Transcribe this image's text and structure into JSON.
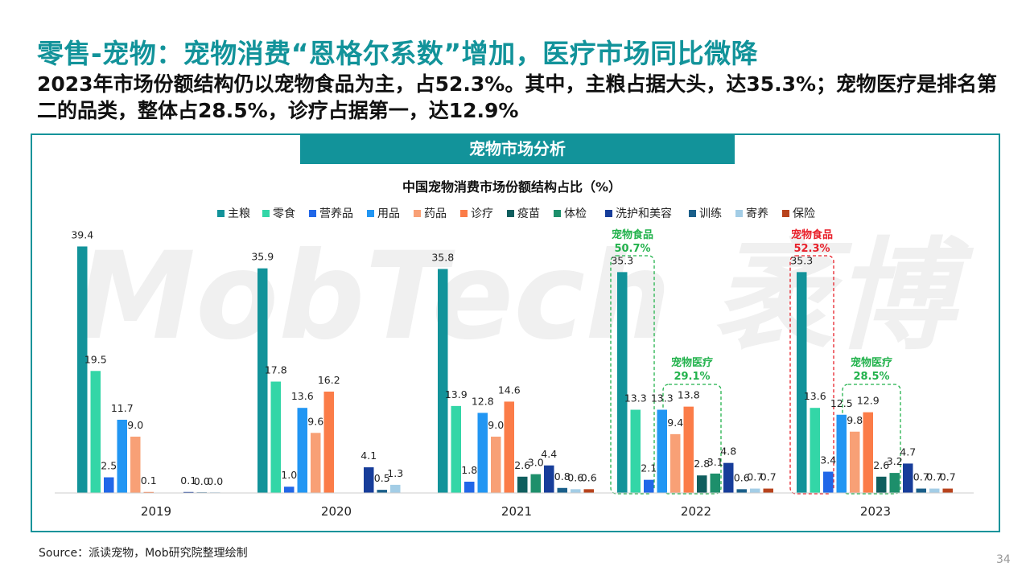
{
  "slide": {
    "title": "零售-宠物：宠物消费“恩格尔系数”增加，医疗市场同比微降",
    "subtitle": "2023年市场份额结构仍以宠物食品为主，占52.3%。其中，主粮占据大头，达35.3%；宠物医疗是排名第二的品类，整体占28.5%，诊疗占据第一，达12.9%",
    "section_header": "宠物市场分析",
    "watermark": "MobTech 袤博",
    "source": "Source：派读宠物，Mob研究院整理绘制",
    "page_number": "34"
  },
  "chart_data": {
    "type": "bar",
    "title": "中国宠物消费市场份额结构占比（%）",
    "categories": [
      "2019",
      "2020",
      "2021",
      "2022",
      "2023"
    ],
    "legend_position": "top",
    "grid": false,
    "series": [
      {
        "name": "主粮",
        "color": "#12939a",
        "values": [
          39.4,
          35.9,
          35.8,
          35.3,
          35.3
        ]
      },
      {
        "name": "零食",
        "color": "#33d6a7",
        "values": [
          19.5,
          17.8,
          13.9,
          13.3,
          13.6
        ]
      },
      {
        "name": "营养品",
        "color": "#2167e8",
        "values": [
          2.5,
          1.0,
          1.8,
          2.1,
          3.4
        ]
      },
      {
        "name": "用品",
        "color": "#2196f3",
        "values": [
          11.7,
          13.6,
          12.8,
          13.3,
          12.5
        ]
      },
      {
        "name": "药品",
        "color": "#f8a076",
        "values": [
          9.0,
          9.6,
          9.0,
          9.4,
          9.8
        ]
      },
      {
        "name": "诊疗",
        "color": "#fb7c48",
        "values": [
          0.1,
          16.2,
          14.6,
          13.8,
          12.9
        ]
      },
      {
        "name": "疫苗",
        "color": "#0f5e5e",
        "values": [
          null,
          null,
          2.6,
          2.8,
          2.6
        ]
      },
      {
        "name": "体检",
        "color": "#1d8f6b",
        "values": [
          null,
          null,
          3.0,
          3.1,
          3.2
        ]
      },
      {
        "name": "洗护和美容",
        "color": "#173d9a",
        "values": [
          0.1,
          4.1,
          4.4,
          4.8,
          4.7
        ]
      },
      {
        "name": "训练",
        "color": "#1a5f8a",
        "values": [
          0.0,
          0.5,
          0.8,
          0.6,
          0.7
        ]
      },
      {
        "name": "寄养",
        "color": "#a3cde6",
        "values": [
          0.0,
          1.3,
          0.6,
          0.7,
          0.7
        ]
      },
      {
        "name": "保险",
        "color": "#b8431c",
        "values": [
          null,
          null,
          0.6,
          0.7,
          0.7
        ]
      }
    ],
    "annotations": [
      {
        "label": "宠物食品",
        "value": "50.7%",
        "category": "2022",
        "group": "food",
        "color": "#22b24c"
      },
      {
        "label": "宠物医疗",
        "value": "29.1%",
        "category": "2022",
        "group": "medical",
        "color": "#22b24c"
      },
      {
        "label": "宠物食品",
        "value": "52.3%",
        "category": "2023",
        "group": "food",
        "color": "#e8202a"
      },
      {
        "label": "宠物医疗",
        "value": "28.5%",
        "category": "2023",
        "group": "medical",
        "color": "#22b24c"
      }
    ]
  }
}
